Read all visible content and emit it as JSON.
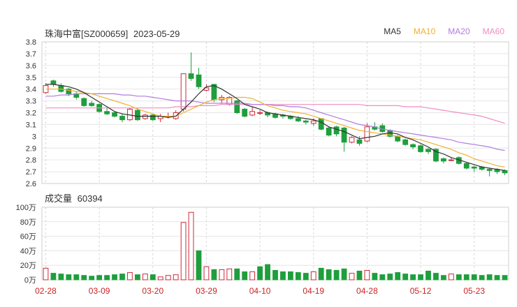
{
  "header": {
    "stock_name": "珠海中富",
    "code": "[SZ000659]",
    "date": "2023-05-29"
  },
  "legend": [
    {
      "label": "MA5",
      "color": "#333333"
    },
    {
      "label": "MA10",
      "color": "#f0b030"
    },
    {
      "label": "MA20",
      "color": "#b07ce0"
    },
    {
      "label": "MA60",
      "color": "#f08cc0"
    }
  ],
  "volume": {
    "label": "成交量",
    "value": "60394"
  },
  "colors": {
    "up": "#cc2a3a",
    "down": "#1e9e3c",
    "grid": "#e6e6e6",
    "axis_text": "#333333",
    "date_text": "#cc2222"
  },
  "chart_data": [
    {
      "type": "candlestick",
      "ylim": [
        2.6,
        3.8
      ],
      "y_ticks": [
        "3.8",
        "3.7",
        "3.6",
        "3.5",
        "3.4",
        "3.3",
        "3.2",
        "3.1",
        "3",
        "2.9",
        "2.8",
        "2.7",
        "2.6"
      ],
      "x_ticks": [
        "02-28",
        "03-09",
        "03-20",
        "03-29",
        "04-10",
        "04-19",
        "04-28",
        "05-12",
        "05-23"
      ],
      "x_tick_index": [
        0,
        7,
        14,
        21,
        28,
        35,
        42,
        49,
        56
      ],
      "candles": [
        [
          3.37,
          3.43,
          3.45,
          3.36
        ],
        [
          3.47,
          3.44,
          3.48,
          3.42
        ],
        [
          3.43,
          3.38,
          3.45,
          3.37
        ],
        [
          3.4,
          3.36,
          3.41,
          3.34
        ],
        [
          3.36,
          3.33,
          3.38,
          3.31
        ],
        [
          3.32,
          3.26,
          3.33,
          3.25
        ],
        [
          3.28,
          3.26,
          3.3,
          3.25
        ],
        [
          3.27,
          3.21,
          3.28,
          3.2
        ],
        [
          3.21,
          3.19,
          3.24,
          3.18
        ],
        [
          3.2,
          3.17,
          3.21,
          3.16
        ],
        [
          3.17,
          3.14,
          3.19,
          3.12
        ],
        [
          3.14,
          3.23,
          3.24,
          3.13
        ],
        [
          3.22,
          3.14,
          3.24,
          3.13
        ],
        [
          3.15,
          3.18,
          3.19,
          3.14
        ],
        [
          3.18,
          3.14,
          3.19,
          3.13
        ],
        [
          3.15,
          3.17,
          3.19,
          3.12
        ],
        [
          3.17,
          3.17,
          3.2,
          3.15
        ],
        [
          3.15,
          3.2,
          3.22,
          3.14
        ],
        [
          3.23,
          3.53,
          3.53,
          3.21
        ],
        [
          3.53,
          3.49,
          3.71,
          3.47
        ],
        [
          3.52,
          3.42,
          3.58,
          3.4
        ],
        [
          3.39,
          3.41,
          3.44,
          3.38
        ],
        [
          3.44,
          3.31,
          3.44,
          3.29
        ],
        [
          3.31,
          3.33,
          3.35,
          3.28
        ],
        [
          3.27,
          3.33,
          3.34,
          3.26
        ],
        [
          3.3,
          3.2,
          3.31,
          3.19
        ],
        [
          3.23,
          3.17,
          3.24,
          3.16
        ],
        [
          3.18,
          3.21,
          3.25,
          3.17
        ],
        [
          3.2,
          3.2,
          3.22,
          3.18
        ],
        [
          3.2,
          3.18,
          3.21,
          3.16
        ],
        [
          3.19,
          3.16,
          3.2,
          3.15
        ],
        [
          3.18,
          3.17,
          3.19,
          3.15
        ],
        [
          3.17,
          3.15,
          3.18,
          3.14
        ],
        [
          3.15,
          3.13,
          3.17,
          3.12
        ],
        [
          3.13,
          3.12,
          3.14,
          3.1
        ],
        [
          3.11,
          3.13,
          3.15,
          3.09
        ],
        [
          3.15,
          3.06,
          3.15,
          3.05
        ],
        [
          3.07,
          3.01,
          3.08,
          3.0
        ],
        [
          3.08,
          3.02,
          3.09,
          3.0
        ],
        [
          3.07,
          2.95,
          3.08,
          2.87
        ],
        [
          2.95,
          2.99,
          3.0,
          2.94
        ],
        [
          2.97,
          2.94,
          3.0,
          2.92
        ],
        [
          2.96,
          3.08,
          3.11,
          2.95
        ],
        [
          3.08,
          3.06,
          3.12,
          3.05
        ],
        [
          3.09,
          3.04,
          3.11,
          3.03
        ],
        [
          3.05,
          3.0,
          3.06,
          2.99
        ],
        [
          3.0,
          2.96,
          3.01,
          2.95
        ],
        [
          2.97,
          2.93,
          2.98,
          2.92
        ],
        [
          2.93,
          2.91,
          2.94,
          2.89
        ],
        [
          2.92,
          2.87,
          2.93,
          2.86
        ],
        [
          2.89,
          2.87,
          2.9,
          2.85
        ],
        [
          2.89,
          2.79,
          2.9,
          2.78
        ],
        [
          2.81,
          2.79,
          2.82,
          2.77
        ],
        [
          2.8,
          2.8,
          2.82,
          2.79
        ],
        [
          2.82,
          2.77,
          2.83,
          2.76
        ],
        [
          2.77,
          2.73,
          2.78,
          2.72
        ],
        [
          2.74,
          2.73,
          2.75,
          2.7
        ],
        [
          2.74,
          2.72,
          2.75,
          2.71
        ],
        [
          2.72,
          2.71,
          2.73,
          2.66
        ],
        [
          2.72,
          2.7,
          2.73,
          2.68
        ],
        [
          2.71,
          2.69,
          2.72,
          2.67
        ]
      ],
      "ma5": [
        3.44,
        3.44,
        3.43,
        3.42,
        3.4,
        3.37,
        3.33,
        3.29,
        3.25,
        3.21,
        3.19,
        3.18,
        3.17,
        3.17,
        3.17,
        3.17,
        3.16,
        3.17,
        3.23,
        3.29,
        3.36,
        3.42,
        3.43,
        3.4,
        3.36,
        3.32,
        3.27,
        3.25,
        3.23,
        3.2,
        3.19,
        3.18,
        3.17,
        3.16,
        3.15,
        3.14,
        3.12,
        3.08,
        3.06,
        3.04,
        3.01,
        2.98,
        2.99,
        3.0,
        3.02,
        3.03,
        3.02,
        2.99,
        2.97,
        2.94,
        2.91,
        2.87,
        2.85,
        2.82,
        2.8,
        2.78,
        2.76,
        2.74,
        2.73,
        2.72,
        2.71
      ],
      "ma10": [
        3.4,
        3.4,
        3.4,
        3.39,
        3.38,
        3.37,
        3.36,
        3.34,
        3.32,
        3.3,
        3.28,
        3.26,
        3.23,
        3.21,
        3.19,
        3.17,
        3.17,
        3.17,
        3.2,
        3.23,
        3.26,
        3.29,
        3.31,
        3.32,
        3.32,
        3.33,
        3.33,
        3.32,
        3.29,
        3.26,
        3.24,
        3.22,
        3.21,
        3.2,
        3.19,
        3.17,
        3.15,
        3.13,
        3.11,
        3.09,
        3.07,
        3.05,
        3.04,
        3.03,
        3.02,
        3.01,
        3.0,
        2.99,
        2.98,
        2.97,
        2.95,
        2.93,
        2.91,
        2.89,
        2.86,
        2.84,
        2.81,
        2.79,
        2.77,
        2.75,
        2.74
      ],
      "ma20": [
        3.34,
        3.34,
        3.35,
        3.35,
        3.36,
        3.36,
        3.36,
        3.36,
        3.36,
        3.36,
        3.35,
        3.35,
        3.34,
        3.34,
        3.33,
        3.32,
        3.31,
        3.3,
        3.3,
        3.3,
        3.29,
        3.28,
        3.28,
        3.28,
        3.28,
        3.28,
        3.28,
        3.27,
        3.27,
        3.27,
        3.26,
        3.26,
        3.25,
        3.25,
        3.24,
        3.22,
        3.2,
        3.18,
        3.16,
        3.14,
        3.12,
        3.1,
        3.09,
        3.08,
        3.06,
        3.05,
        3.04,
        3.03,
        3.02,
        3.01,
        3.0,
        2.99,
        2.98,
        2.97,
        2.95,
        2.94,
        2.93,
        2.92,
        2.91,
        2.89,
        2.88
      ],
      "ma60": [
        3.24,
        3.24,
        3.24,
        3.24,
        3.24,
        3.24,
        3.24,
        3.24,
        3.24,
        3.24,
        3.24,
        3.24,
        3.24,
        3.24,
        3.24,
        3.24,
        3.24,
        3.25,
        3.25,
        3.25,
        3.26,
        3.26,
        3.26,
        3.27,
        3.27,
        3.27,
        3.27,
        3.27,
        3.27,
        3.27,
        3.27,
        3.27,
        3.27,
        3.27,
        3.27,
        3.27,
        3.27,
        3.27,
        3.27,
        3.27,
        3.27,
        3.27,
        3.26,
        3.26,
        3.26,
        3.26,
        3.26,
        3.25,
        3.25,
        3.25,
        3.24,
        3.23,
        3.22,
        3.21,
        3.2,
        3.19,
        3.18,
        3.17,
        3.15,
        3.13,
        3.11
      ]
    },
    {
      "type": "bar",
      "y_ticks": [
        "100万",
        "80万",
        "60万",
        "40万",
        "20万",
        "0万"
      ],
      "ylim": [
        0,
        100
      ],
      "values": [
        16,
        9,
        8,
        7,
        7,
        6,
        5,
        6,
        6,
        7,
        8,
        10,
        7,
        8,
        7,
        4,
        6,
        7,
        79,
        93,
        40,
        18,
        14,
        14,
        15,
        15,
        11,
        11,
        18,
        21,
        13,
        11,
        11,
        10,
        9,
        11,
        16,
        14,
        13,
        15,
        9,
        12,
        13,
        9,
        7,
        8,
        10,
        8,
        7,
        7,
        12,
        9,
        6,
        8,
        7,
        7,
        7,
        6,
        7,
        6,
        6
      ],
      "directions": [
        "u",
        "d",
        "d",
        "d",
        "d",
        "d",
        "d",
        "d",
        "d",
        "d",
        "d",
        "u",
        "d",
        "u",
        "d",
        "u",
        "u",
        "u",
        "u",
        "u",
        "d",
        "u",
        "d",
        "u",
        "u",
        "d",
        "d",
        "u",
        "d",
        "d",
        "d",
        "d",
        "d",
        "d",
        "d",
        "u",
        "d",
        "d",
        "d",
        "d",
        "u",
        "d",
        "u",
        "d",
        "d",
        "d",
        "d",
        "d",
        "d",
        "d",
        "d",
        "d",
        "d",
        "u",
        "d",
        "d",
        "d",
        "d",
        "d",
        "d",
        "d"
      ]
    }
  ]
}
